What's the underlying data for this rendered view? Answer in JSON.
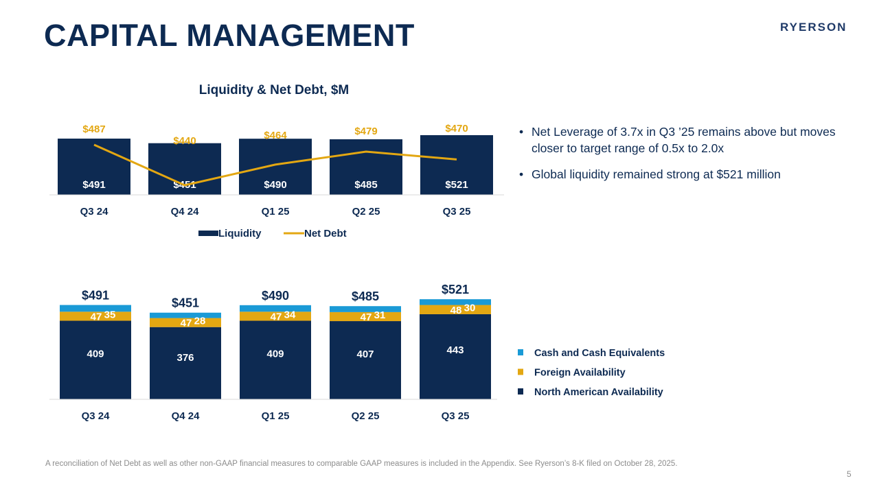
{
  "page": {
    "title": "CAPITAL MANAGEMENT",
    "logo": "RYERSON",
    "bullets": [
      "Net Leverage of 3.7x in Q3 ’25 remains above but moves closer to target range of 0.5x to 2.0x",
      "Global liquidity remained strong at $521 million"
    ],
    "footnote": "A reconciliation of Net Debt as well as other non-GAAP financial measures to comparable GAAP measures is included in the Appendix. See Ryerson’s 8-K filed on October 28, 2025.",
    "page_number": "5"
  },
  "colors": {
    "navy": "#0d2a52",
    "gold": "#e3a712",
    "blue": "#1a9ad6",
    "axis": "#d9d9d9"
  },
  "chart_data": [
    {
      "type": "bar",
      "title": "Liquidity & Net Debt, $M",
      "categories": [
        "Q3 24",
        "Q4 24",
        "Q1 25",
        "Q2 25",
        "Q3 25"
      ],
      "series": [
        {
          "name": "Liquidity",
          "kind": "bar",
          "values": [
            491,
            451,
            490,
            485,
            521
          ],
          "labels": [
            "$491",
            "$451",
            "$490",
            "$485",
            "$521"
          ]
        },
        {
          "name": "Net Debt",
          "kind": "line",
          "values": [
            487,
            440,
            464,
            479,
            470
          ],
          "labels": [
            "$487",
            "$440",
            "$464",
            "$479",
            "$470"
          ]
        }
      ],
      "legend": "bottom"
    },
    {
      "type": "bar",
      "stacked": true,
      "categories": [
        "Q3 24",
        "Q4 24",
        "Q1 25",
        "Q2 25",
        "Q3 25"
      ],
      "series": [
        {
          "name": "North American Availability",
          "values": [
            409,
            376,
            409,
            407,
            443
          ]
        },
        {
          "name": "Foreign Availability",
          "values": [
            47,
            47,
            47,
            47,
            48
          ]
        },
        {
          "name": "Cash and Cash Equivalents",
          "values": [
            35,
            28,
            34,
            31,
            30
          ]
        }
      ],
      "totals": [
        "$491",
        "$451",
        "$490",
        "$485",
        "$521"
      ],
      "legend": "right"
    }
  ]
}
